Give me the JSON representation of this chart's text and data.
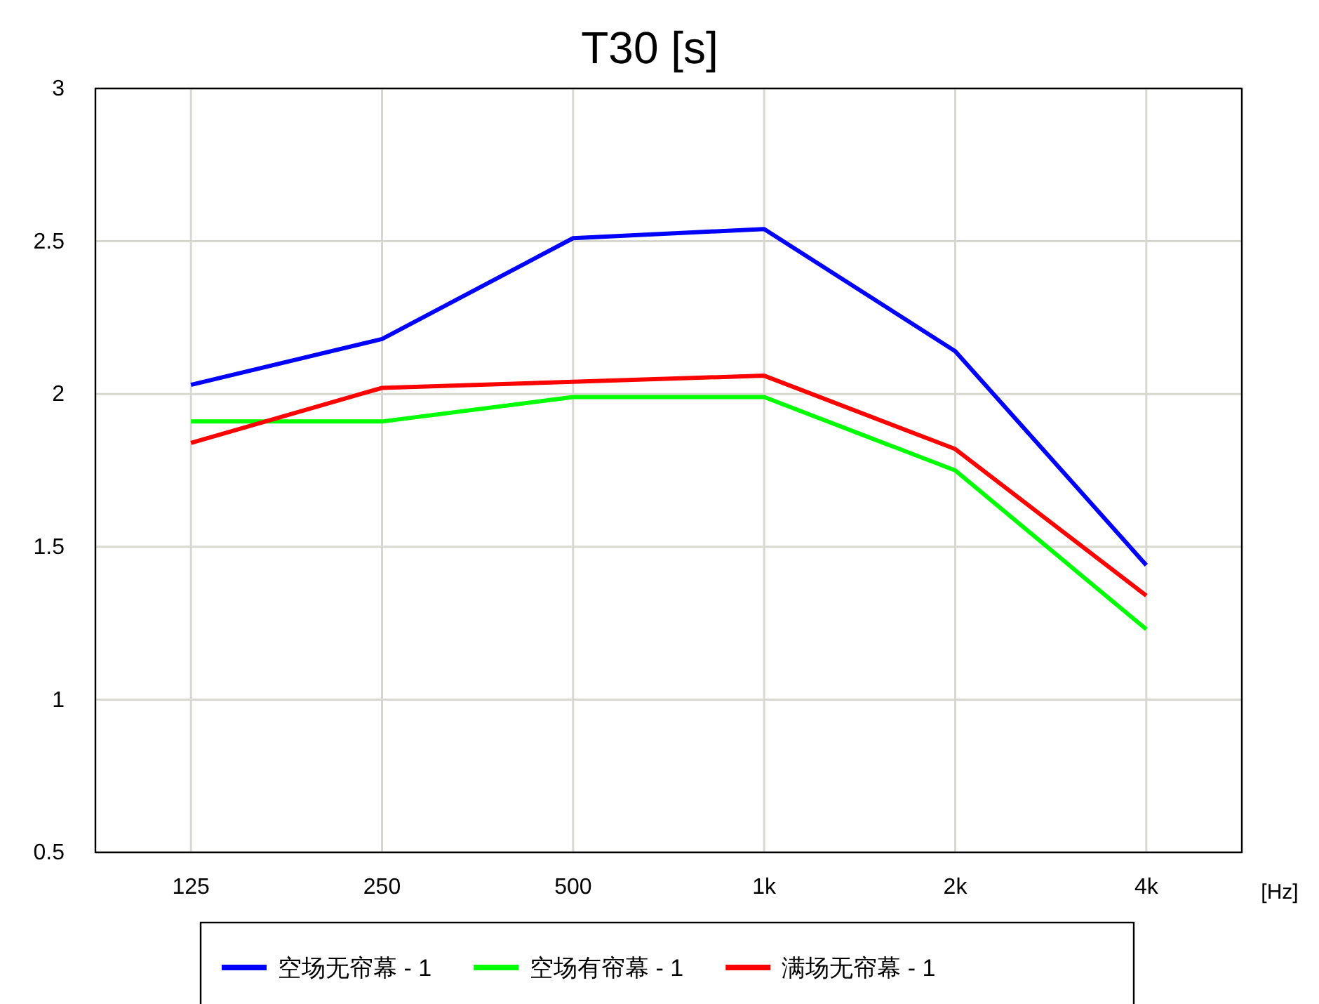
{
  "chart_data": {
    "type": "line",
    "title": "T30 [s]",
    "xlabel": "[Hz]",
    "categories": [
      "125",
      "250",
      "500",
      "1k",
      "2k",
      "4k"
    ],
    "ylim": [
      0.5,
      3
    ],
    "yticks": [
      0.5,
      1,
      1.5,
      2,
      2.5,
      3
    ],
    "grid": true,
    "legend": "bottom",
    "marker": "none",
    "line_style": "solid",
    "series": [
      {
        "name": "空场无帘幕 - 1",
        "color": "#0000ff",
        "values": [
          2.03,
          2.18,
          2.51,
          2.54,
          2.14,
          1.44
        ]
      },
      {
        "name": "空场有帘幕 - 1",
        "color": "#00ff00",
        "values": [
          1.91,
          1.91,
          1.99,
          1.99,
          1.75,
          1.23
        ]
      },
      {
        "name": "满场无帘幕 - 1",
        "color": "#ff0000",
        "values": [
          1.84,
          2.02,
          2.04,
          2.06,
          1.82,
          1.34
        ]
      }
    ]
  }
}
